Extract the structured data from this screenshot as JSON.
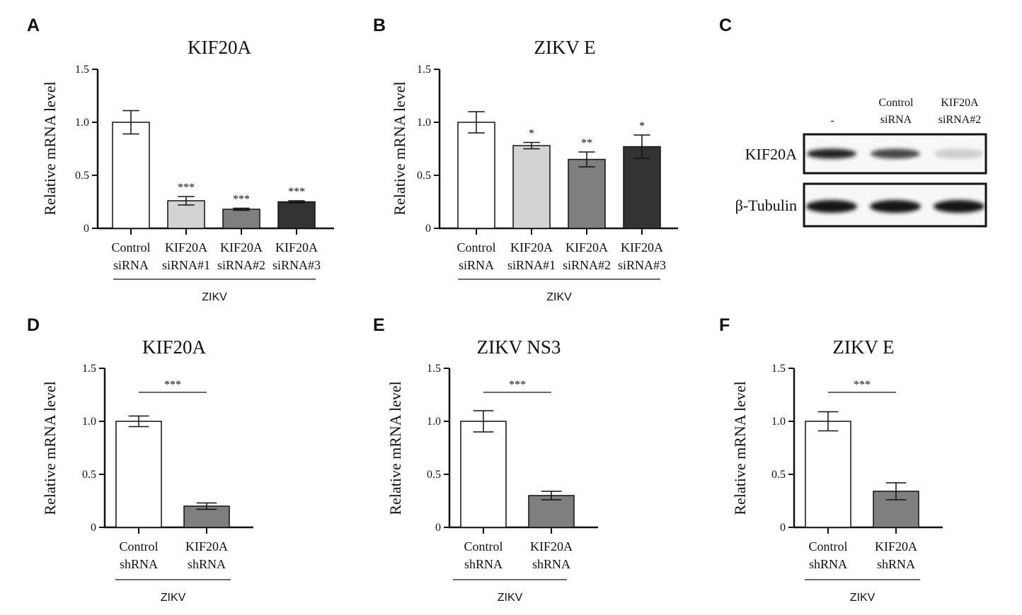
{
  "chart_data": [
    {
      "panel": "A",
      "type": "bar",
      "title": "KIF20A",
      "ylabel": "Relative mRNA level",
      "ylim": [
        0,
        1.5
      ],
      "yticks": [
        "0",
        "0.5",
        "1.0",
        "1.5"
      ],
      "yticks_values": [
        0,
        0.5,
        1.0,
        1.5
      ],
      "categories": [
        [
          "Control",
          "siRNA"
        ],
        [
          "KIF20A",
          "siRNA#1"
        ],
        [
          "KIF20A",
          "siRNA#2"
        ],
        [
          "KIF20A",
          "siRNA#3"
        ]
      ],
      "values": [
        1.0,
        0.26,
        0.18,
        0.25
      ],
      "errors": [
        0.11,
        0.04,
        0.01,
        0.01
      ],
      "colors": [
        "#ffffff",
        "#d3d3d3",
        "#7f7f7f",
        "#333333"
      ],
      "significance": [
        "",
        "***",
        "***",
        "***"
      ],
      "group_label": "ZIKV"
    },
    {
      "panel": "B",
      "type": "bar",
      "title": "ZIKV E",
      "ylabel": "Relative mRNA level",
      "ylim": [
        0,
        1.5
      ],
      "yticks": [
        "0",
        "0.5",
        "1.0",
        "1.5"
      ],
      "yticks_values": [
        0,
        0.5,
        1.0,
        1.5
      ],
      "categories": [
        [
          "Control",
          "siRNA"
        ],
        [
          "KIF20A",
          "siRNA#1"
        ],
        [
          "KIF20A",
          "siRNA#2"
        ],
        [
          "KIF20A",
          "siRNA#3"
        ]
      ],
      "values": [
        1.0,
        0.78,
        0.65,
        0.77
      ],
      "errors": [
        0.1,
        0.03,
        0.07,
        0.11
      ],
      "colors": [
        "#ffffff",
        "#d3d3d3",
        "#7f7f7f",
        "#333333"
      ],
      "significance": [
        "",
        "*",
        "**",
        "*"
      ],
      "group_label": "ZIKV"
    },
    {
      "panel": "D",
      "type": "bar",
      "title": "KIF20A",
      "ylabel": "Relative mRNA level",
      "ylim": [
        0,
        1.5
      ],
      "yticks": [
        "0",
        "0.5",
        "1.0",
        "1.5"
      ],
      "yticks_values": [
        0,
        0.5,
        1.0,
        1.5
      ],
      "categories": [
        [
          "Control",
          "shRNA"
        ],
        [
          "KIF20A",
          "shRNA"
        ]
      ],
      "values": [
        1.0,
        0.2
      ],
      "errors": [
        0.05,
        0.03
      ],
      "colors": [
        "#ffffff",
        "#7f7f7f"
      ],
      "bracket_label": "***",
      "group_label": "ZIKV"
    },
    {
      "panel": "E",
      "type": "bar",
      "title": "ZIKV NS3",
      "ylabel": "Relative mRNA level",
      "ylim": [
        0,
        1.5
      ],
      "yticks": [
        "0",
        "0.5",
        "1.0",
        "1.5"
      ],
      "yticks_values": [
        0,
        0.5,
        1.0,
        1.5
      ],
      "categories": [
        [
          "Control",
          "shRNA"
        ],
        [
          "KIF20A",
          "shRNA"
        ]
      ],
      "values": [
        1.0,
        0.3
      ],
      "errors": [
        0.1,
        0.04
      ],
      "colors": [
        "#ffffff",
        "#7f7f7f"
      ],
      "bracket_label": "***",
      "group_label": "ZIKV"
    },
    {
      "panel": "F",
      "type": "bar",
      "title": "ZIKV E",
      "ylabel": "Relative mRNA level",
      "ylim": [
        0,
        1.5
      ],
      "yticks": [
        "0",
        "0.5",
        "1.0",
        "1.5"
      ],
      "yticks_values": [
        0,
        0.5,
        1.0,
        1.5
      ],
      "categories": [
        [
          "Control",
          "shRNA"
        ],
        [
          "KIF20A",
          "shRNA"
        ]
      ],
      "values": [
        1.0,
        0.34
      ],
      "errors": [
        0.09,
        0.08
      ],
      "colors": [
        "#ffffff",
        "#7f7f7f"
      ],
      "bracket_label": "***",
      "group_label": "ZIKV"
    }
  ],
  "western_blot": {
    "panel": "C",
    "lanes": [
      [
        "-"
      ],
      [
        "Control",
        "siRNA"
      ],
      [
        "KIF20A",
        "siRNA#2"
      ]
    ],
    "rows": [
      {
        "label": "KIF20A",
        "intensities": [
          0.95,
          0.85,
          0.3
        ]
      },
      {
        "label": "β-Tubulin",
        "intensities": [
          1.0,
          1.0,
          1.0
        ]
      }
    ]
  }
}
